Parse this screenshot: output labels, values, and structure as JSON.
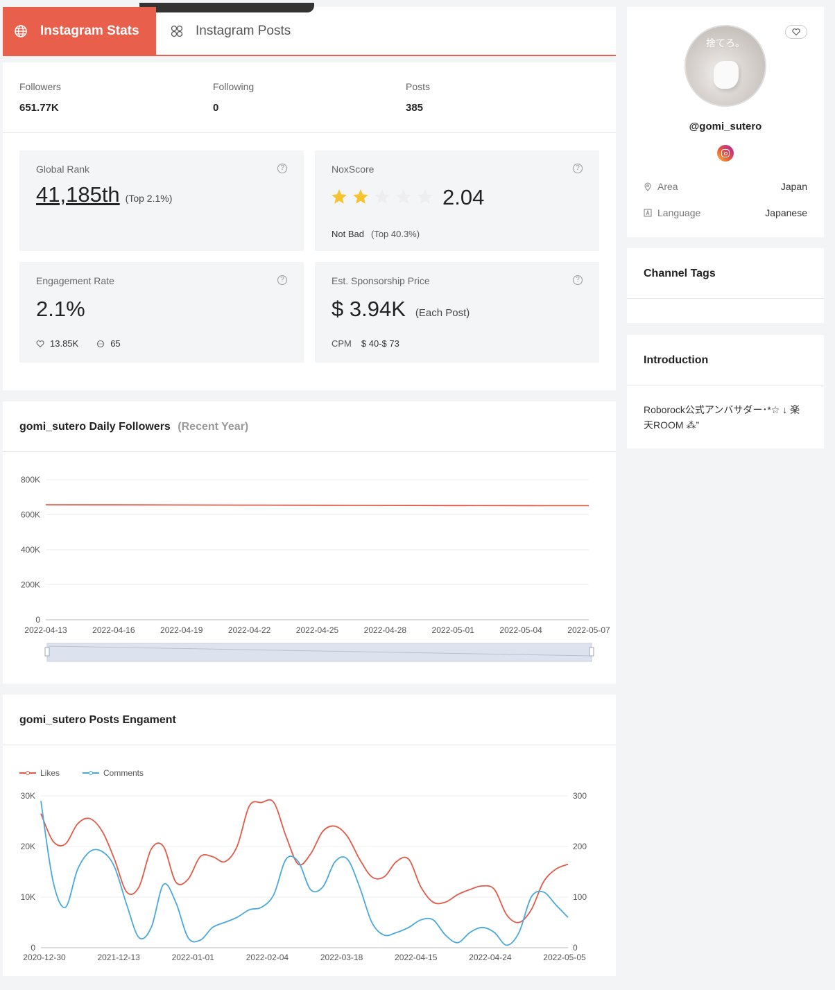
{
  "tabs": {
    "active": "Instagram Stats",
    "other": "Instagram Posts"
  },
  "summary": {
    "followers_label": "Followers",
    "followers": "651.77K",
    "following_label": "Following",
    "following": "0",
    "posts_label": "Posts",
    "posts": "385"
  },
  "global_rank": {
    "label": "Global Rank",
    "value": "41,185th",
    "top": "(Top 2.1%)"
  },
  "nox": {
    "label": "NoxScore",
    "score": "2.04",
    "stars": 2,
    "rating": "Not Bad",
    "top": "(Top 40.3%)"
  },
  "engagement": {
    "label": "Engagement Rate",
    "value": "2.1%",
    "likes": "13.85K",
    "comments": "65"
  },
  "sponsorship": {
    "label": "Est. Sponsorship Price",
    "value": "$ 3.94K",
    "each": "(Each Post)",
    "cpm_label": "CPM",
    "cpm": "$ 40-$ 73"
  },
  "followers_chart": {
    "title": "gomi_sutero Daily Followers",
    "sub": "(Recent Year)"
  },
  "engagement_chart": {
    "title": "gomi_sutero Posts Engament"
  },
  "profile": {
    "handle": "@gomi_sutero",
    "avatar_text": "捨てろ。",
    "area_label": "Area",
    "area": "Japan",
    "language_label": "Language",
    "language": "Japanese"
  },
  "channel_tags": {
    "title": "Channel Tags"
  },
  "introduction": {
    "title": "Introduction",
    "text": "Roborock公式アンバサダー･*☆ ↓ 楽天ROOM ⁂”"
  },
  "colors": {
    "accent": "#e8604c",
    "likes": "#e05a47",
    "comments": "#4aa8dc"
  },
  "chart_data": [
    {
      "type": "line",
      "title": "gomi_sutero Daily Followers",
      "x": [
        "2022-04-13",
        "2022-04-16",
        "2022-04-19",
        "2022-04-22",
        "2022-04-25",
        "2022-04-28",
        "2022-05-01",
        "2022-05-04",
        "2022-05-07"
      ],
      "series": [
        {
          "values": [
            657000,
            656500,
            655800,
            655000,
            654300,
            653500,
            652800,
            652200,
            651770
          ]
        }
      ],
      "yticks": [
        "0",
        "200K",
        "400K",
        "600K",
        "800K"
      ],
      "ylim": [
        0,
        800000
      ],
      "grid": true
    },
    {
      "type": "line",
      "title": "gomi_sutero Posts Engament",
      "x_ticks": [
        "2020-12-30",
        "2021-12-13",
        "2022-01-01",
        "2022-02-04",
        "2022-03-18",
        "2022-04-15",
        "2022-04-24",
        "2022-05-05"
      ],
      "legend": [
        "Likes",
        "Comments"
      ],
      "legend_position": "top-left",
      "left_ylim": [
        0,
        30000
      ],
      "left_ticks": [
        "0",
        "10K",
        "20K",
        "30K"
      ],
      "right_ylim": [
        0,
        300
      ],
      "right_ticks": [
        "0",
        "100",
        "200",
        "300"
      ],
      "series": [
        {
          "name": "Likes",
          "axis": "left",
          "values": [
            26500,
            21000,
            20500,
            24500,
            25500,
            23000,
            17500,
            11000,
            12000,
            19500,
            20000,
            13000,
            13500,
            18000,
            18000,
            17000,
            20000,
            28000,
            28700,
            28700,
            22000,
            16500,
            18500,
            23000,
            24000,
            22000,
            17500,
            14000,
            14000,
            17000,
            17500,
            12000,
            9000,
            9000,
            10500,
            11500,
            12200,
            11500,
            6500,
            5000,
            7500,
            13000,
            15500,
            16500
          ]
        },
        {
          "name": "Comments",
          "axis": "left",
          "values": [
            29000,
            13000,
            8000,
            15500,
            19000,
            19000,
            16000,
            8500,
            2000,
            4000,
            12500,
            9000,
            2000,
            1500,
            4000,
            5000,
            6000,
            7500,
            8000,
            10500,
            17500,
            17000,
            11500,
            12000,
            17000,
            17500,
            12000,
            5000,
            2500,
            3000,
            4000,
            5500,
            5500,
            2500,
            1000,
            3000,
            4000,
            3000,
            500,
            3000,
            10000,
            11000,
            8500,
            6000
          ]
        }
      ],
      "grid": true
    }
  ]
}
